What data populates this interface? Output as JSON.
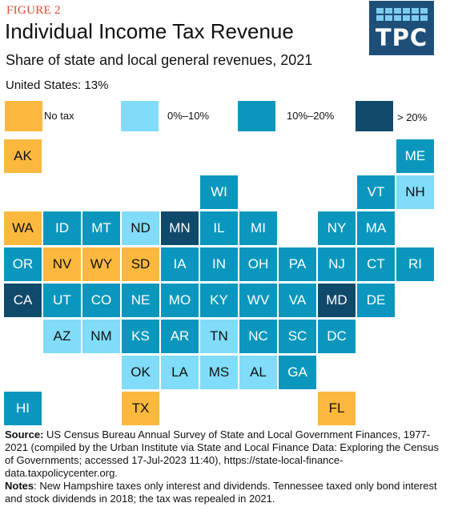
{
  "figure_label": "FIGURE 2",
  "title": "Individual Income Tax Revenue",
  "subtitle": "Share of state and local general revenues, 2021",
  "us_value": "United States: 13%",
  "logo": {
    "text": "TPC"
  },
  "colors": {
    "no_tax": "#fbb83f",
    "c0_10": "#80dcf8",
    "c10_20": "#0b97bd",
    "c20_plus": "#104a6a",
    "logo_bg": "#1e4f78",
    "figure_label": "#e2492f"
  },
  "legend": [
    {
      "key": "no_tax",
      "label": "No tax"
    },
    {
      "key": "c0_10",
      "label": "0%–10%"
    },
    {
      "key": "c10_20",
      "label": "10%–20%"
    },
    {
      "key": "c20_plus",
      "label": "> 20%"
    }
  ],
  "states": [
    {
      "abbr": "AK",
      "cat": "no_tax",
      "row": 0,
      "col": 0
    },
    {
      "abbr": "ME",
      "cat": "c10_20",
      "row": 0,
      "col": 10
    },
    {
      "abbr": "WI",
      "cat": "c10_20",
      "row": 1,
      "col": 5
    },
    {
      "abbr": "VT",
      "cat": "c10_20",
      "row": 1,
      "col": 9
    },
    {
      "abbr": "NH",
      "cat": "c0_10",
      "row": 1,
      "col": 10
    },
    {
      "abbr": "WA",
      "cat": "no_tax",
      "row": 2,
      "col": 0
    },
    {
      "abbr": "ID",
      "cat": "c10_20",
      "row": 2,
      "col": 1
    },
    {
      "abbr": "MT",
      "cat": "c10_20",
      "row": 2,
      "col": 2
    },
    {
      "abbr": "ND",
      "cat": "c0_10",
      "row": 2,
      "col": 3
    },
    {
      "abbr": "MN",
      "cat": "c20_plus",
      "row": 2,
      "col": 4
    },
    {
      "abbr": "IL",
      "cat": "c10_20",
      "row": 2,
      "col": 5
    },
    {
      "abbr": "MI",
      "cat": "c10_20",
      "row": 2,
      "col": 6
    },
    {
      "abbr": "NY",
      "cat": "c10_20",
      "row": 2,
      "col": 8
    },
    {
      "abbr": "MA",
      "cat": "c10_20",
      "row": 2,
      "col": 9
    },
    {
      "abbr": "OR",
      "cat": "c10_20",
      "row": 3,
      "col": 0
    },
    {
      "abbr": "NV",
      "cat": "no_tax",
      "row": 3,
      "col": 1
    },
    {
      "abbr": "WY",
      "cat": "no_tax",
      "row": 3,
      "col": 2
    },
    {
      "abbr": "SD",
      "cat": "no_tax",
      "row": 3,
      "col": 3
    },
    {
      "abbr": "IA",
      "cat": "c10_20",
      "row": 3,
      "col": 4
    },
    {
      "abbr": "IN",
      "cat": "c10_20",
      "row": 3,
      "col": 5
    },
    {
      "abbr": "OH",
      "cat": "c10_20",
      "row": 3,
      "col": 6
    },
    {
      "abbr": "PA",
      "cat": "c10_20",
      "row": 3,
      "col": 7
    },
    {
      "abbr": "NJ",
      "cat": "c10_20",
      "row": 3,
      "col": 8
    },
    {
      "abbr": "CT",
      "cat": "c10_20",
      "row": 3,
      "col": 9
    },
    {
      "abbr": "RI",
      "cat": "c10_20",
      "row": 3,
      "col": 10
    },
    {
      "abbr": "CA",
      "cat": "c20_plus",
      "row": 4,
      "col": 0
    },
    {
      "abbr": "UT",
      "cat": "c10_20",
      "row": 4,
      "col": 1
    },
    {
      "abbr": "CO",
      "cat": "c10_20",
      "row": 4,
      "col": 2
    },
    {
      "abbr": "NE",
      "cat": "c10_20",
      "row": 4,
      "col": 3
    },
    {
      "abbr": "MO",
      "cat": "c10_20",
      "row": 4,
      "col": 4
    },
    {
      "abbr": "KY",
      "cat": "c10_20",
      "row": 4,
      "col": 5
    },
    {
      "abbr": "WV",
      "cat": "c10_20",
      "row": 4,
      "col": 6
    },
    {
      "abbr": "VA",
      "cat": "c10_20",
      "row": 4,
      "col": 7
    },
    {
      "abbr": "MD",
      "cat": "c20_plus",
      "row": 4,
      "col": 8
    },
    {
      "abbr": "DE",
      "cat": "c10_20",
      "row": 4,
      "col": 9
    },
    {
      "abbr": "AZ",
      "cat": "c0_10",
      "row": 5,
      "col": 1
    },
    {
      "abbr": "NM",
      "cat": "c0_10",
      "row": 5,
      "col": 2
    },
    {
      "abbr": "KS",
      "cat": "c10_20",
      "row": 5,
      "col": 3
    },
    {
      "abbr": "AR",
      "cat": "c10_20",
      "row": 5,
      "col": 4
    },
    {
      "abbr": "TN",
      "cat": "c0_10",
      "row": 5,
      "col": 5
    },
    {
      "abbr": "NC",
      "cat": "c10_20",
      "row": 5,
      "col": 6
    },
    {
      "abbr": "SC",
      "cat": "c10_20",
      "row": 5,
      "col": 7
    },
    {
      "abbr": "DC",
      "cat": "c10_20",
      "row": 5,
      "col": 8
    },
    {
      "abbr": "OK",
      "cat": "c0_10",
      "row": 6,
      "col": 3
    },
    {
      "abbr": "LA",
      "cat": "c0_10",
      "row": 6,
      "col": 4
    },
    {
      "abbr": "MS",
      "cat": "c0_10",
      "row": 6,
      "col": 5
    },
    {
      "abbr": "AL",
      "cat": "c0_10",
      "row": 6,
      "col": 6
    },
    {
      "abbr": "GA",
      "cat": "c10_20",
      "row": 6,
      "col": 7
    },
    {
      "abbr": "HI",
      "cat": "c10_20",
      "row": 7,
      "col": 0
    },
    {
      "abbr": "TX",
      "cat": "no_tax",
      "row": 7,
      "col": 3
    },
    {
      "abbr": "FL",
      "cat": "no_tax",
      "row": 7,
      "col": 8
    }
  ],
  "source": {
    "label": "Source:",
    "text": " US Census Bureau Annual Survey of State and Local Government Finances, 1977-2021 (compiled by the Urban Institute via State and Local Finance Data: Exploring the Census of Governments; accessed 17-Jul-2023 11:40), https://state-local-finance-data.taxpolicycenter.org."
  },
  "notes": {
    "label": "Notes",
    "text": ": New Hampshire taxes only interest and dividends. Tennessee taxed only bond interest and stock dividends in 2018; the tax was repealed in 2021."
  }
}
